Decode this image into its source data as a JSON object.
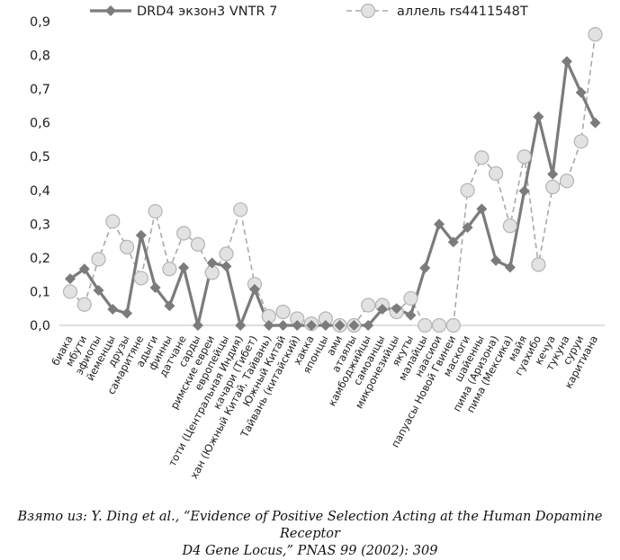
{
  "chart_data": {
    "type": "line",
    "ylim": [
      0,
      0.9
    ],
    "yticks": [
      "0,0",
      "0,1",
      "0,2",
      "0,3",
      "0,4",
      "0,5",
      "0,6",
      "0,7",
      "0,8",
      "0,9"
    ],
    "categories": [
      "биака",
      "мбути",
      "эфиопы",
      "йеменцы",
      "друзы",
      "самаритяне",
      "адыги",
      "финны",
      "датчане",
      "сарды",
      "римские евреи",
      "европейцы",
      "тоти (Центральная Индия)",
      "качари (Тибет)",
      "хан (Южный Китай, Тайвань)",
      "Южный Китай",
      "Тайвань (китайский)",
      "хакка",
      "японцы",
      "ами",
      "атаялы",
      "камбоджийцы",
      "самоанцы",
      "микронезийцы",
      "якуты",
      "малайцы",
      "наасиои",
      "папуасы Новой Гвинеи",
      "маскоги",
      "шайенны",
      "пима (Аризона)",
      "пима (Мексика)",
      "майя",
      "гуахибо",
      "кечуа",
      "тукуна",
      "суруи",
      "каритиана"
    ],
    "series": [
      {
        "name": "DRD4 экзон3 VNTR 7",
        "color": "#7b7b7b",
        "style": "solid-diamond",
        "values": [
          0.138,
          0.167,
          0.104,
          0.048,
          0.036,
          0.267,
          0.112,
          0.058,
          0.171,
          0.0,
          0.185,
          0.175,
          0.0,
          0.107,
          0.0,
          0.0,
          0.0,
          0.0,
          0.0,
          0.0,
          0.0,
          0.0,
          0.048,
          0.05,
          0.03,
          0.17,
          0.3,
          0.247,
          0.29,
          0.345,
          0.192,
          0.172,
          0.398,
          0.618,
          0.448,
          0.782,
          0.69,
          0.6
        ]
      },
      {
        "name": "аллель rs4411548T",
        "color": "#a9a9a9",
        "style": "dashed-circle",
        "values": [
          0.1,
          0.062,
          0.196,
          0.308,
          0.232,
          0.14,
          0.338,
          0.167,
          0.273,
          0.24,
          0.156,
          0.212,
          0.343,
          0.122,
          0.027,
          0.04,
          0.02,
          0.005,
          0.02,
          0.0,
          0.0,
          0.06,
          0.06,
          0.04,
          0.08,
          0.0,
          0.0,
          0.0,
          0.4,
          0.497,
          0.45,
          0.295,
          0.5,
          0.18,
          0.41,
          0.428,
          0.545,
          0.862
        ]
      }
    ]
  },
  "caption": {
    "line1": "Взято из: Y. Ding et al., “Evidence of Positive Selection Acting at the Human Dopamine Receptor",
    "line2": "D4 Gene Locus,” PNAS 99 (2002): 309"
  }
}
